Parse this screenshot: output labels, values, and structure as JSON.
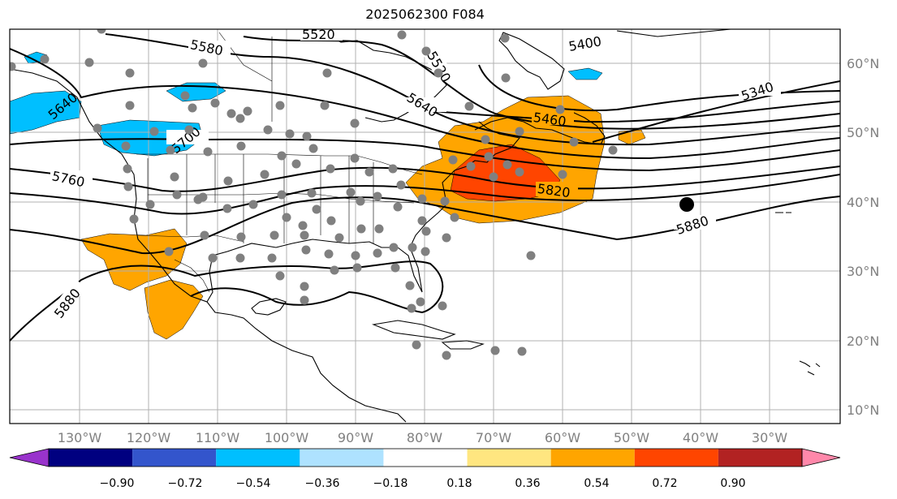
{
  "title": "2025062300 F084",
  "map": {
    "lat_labels": [
      "60°N",
      "50°N",
      "40°N",
      "30°N",
      "20°N",
      "10°N"
    ],
    "lon_labels": [
      "130°W",
      "120°W",
      "110°W",
      "100°W",
      "90°W",
      "80°W",
      "70°W",
      "60°W",
      "50°W",
      "40°W",
      "30°W"
    ],
    "contour_labels": [
      "5580",
      "5520",
      "5400",
      "5520",
      "5340",
      "5460",
      "5640",
      "5700",
      "5760",
      "5820",
      "5880",
      "5880",
      "5640"
    ],
    "colors": {
      "land_outline": "#000000",
      "grid": "#b0b0b0",
      "station_dot": "#808080",
      "marker": "#000000"
    }
  },
  "colorbar": {
    "ticks": [
      "−0.90",
      "−0.72",
      "−0.54",
      "−0.36",
      "−0.18",
      "0.18",
      "0.36",
      "0.54",
      "0.72",
      "0.90"
    ],
    "colors": [
      "#9933cc",
      "#000080",
      "#3355cc",
      "#00bfff",
      "#aee2ff",
      "#ffffff",
      "#ffe680",
      "#ffa500",
      "#ff4500",
      "#b22222",
      "#ff88aa"
    ]
  }
}
